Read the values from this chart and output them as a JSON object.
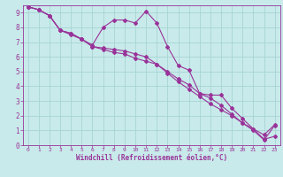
{
  "background_color": "#c8eaea",
  "grid_color": "#a8d4d4",
  "line_color": "#993399",
  "xlabel": "Windchill (Refroidissement éolien,°C)",
  "xlim": [
    -0.5,
    23.5
  ],
  "ylim": [
    0,
    9.5
  ],
  "xticks": [
    0,
    1,
    2,
    3,
    4,
    5,
    6,
    7,
    8,
    9,
    10,
    11,
    12,
    13,
    14,
    15,
    16,
    17,
    18,
    19,
    20,
    21,
    22,
    23
  ],
  "yticks": [
    0,
    1,
    2,
    3,
    4,
    5,
    6,
    7,
    8,
    9
  ],
  "line1_x": [
    0,
    1,
    2,
    3,
    4,
    5,
    6,
    7,
    8,
    9,
    10,
    11,
    12,
    13,
    14,
    15,
    16,
    17,
    18,
    19,
    20,
    21,
    22,
    23
  ],
  "line1_y": [
    9.4,
    9.2,
    8.8,
    7.8,
    7.5,
    7.2,
    6.8,
    8.0,
    8.5,
    8.5,
    8.3,
    9.1,
    8.3,
    6.7,
    5.4,
    5.1,
    3.5,
    3.4,
    3.4,
    2.5,
    1.8,
    1.1,
    0.4,
    0.6
  ],
  "line2_x": [
    0,
    1,
    2,
    3,
    4,
    5,
    6,
    7,
    8,
    9,
    10,
    11,
    12,
    13,
    14,
    15,
    16,
    17,
    18,
    19,
    20,
    21,
    22,
    23
  ],
  "line2_y": [
    9.4,
    9.2,
    8.8,
    7.8,
    7.6,
    7.2,
    6.7,
    6.5,
    6.3,
    6.2,
    5.9,
    5.7,
    5.5,
    5.0,
    4.5,
    4.1,
    3.5,
    3.2,
    2.7,
    2.1,
    1.5,
    1.0,
    0.35,
    1.35
  ],
  "line3_x": [
    0,
    1,
    2,
    3,
    4,
    5,
    6,
    7,
    8,
    9,
    10,
    11,
    12,
    13,
    14,
    15,
    16,
    17,
    18,
    19,
    20,
    21,
    22,
    23
  ],
  "line3_y": [
    9.4,
    9.2,
    8.8,
    7.8,
    7.6,
    7.2,
    6.7,
    6.6,
    6.5,
    6.4,
    6.2,
    6.0,
    5.5,
    4.9,
    4.3,
    3.8,
    3.3,
    2.8,
    2.4,
    2.0,
    1.5,
    1.1,
    0.7,
    1.4
  ]
}
